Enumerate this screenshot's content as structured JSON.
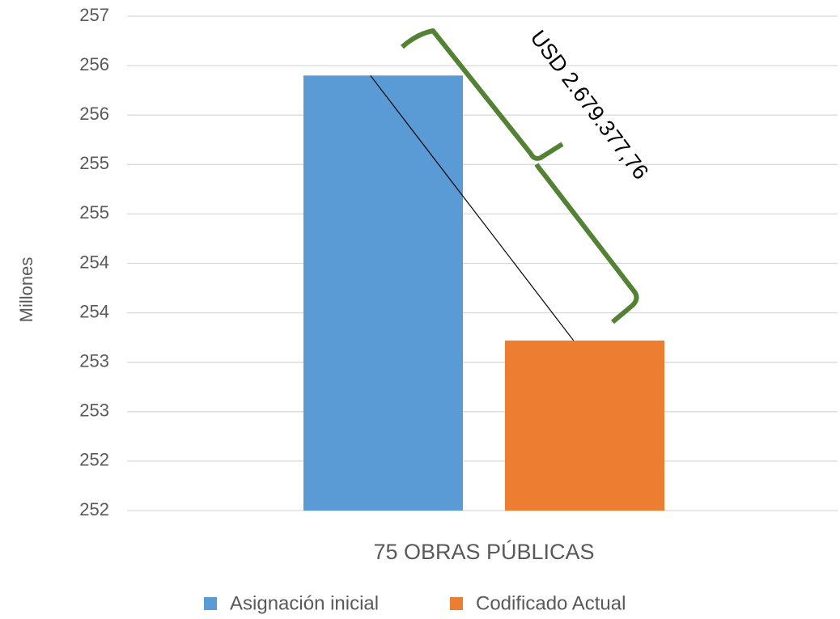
{
  "chart_data": {
    "type": "bar",
    "y_label": "Millones",
    "annotation": "USD 2.679.377,76",
    "categories": [
      "75 OBRAS PÚBLICAS"
    ],
    "series": [
      {
        "name": "Asignación inicial",
        "color": "#5b9bd5",
        "values": [
          255.9
        ]
      },
      {
        "name": "Codificado Actual",
        "color": "#ed7d31",
        "values": [
          253.22
        ]
      }
    ],
    "ylim": [
      251.5,
      256.5
    ],
    "yticks": [
      {
        "value": 251.5,
        "label": "252"
      },
      {
        "value": 252,
        "label": "252"
      },
      {
        "value": 252.5,
        "label": "253"
      },
      {
        "value": 253,
        "label": "253"
      },
      {
        "value": 253.5,
        "label": "254"
      },
      {
        "value": 254,
        "label": "254"
      },
      {
        "value": 254.5,
        "label": "255"
      },
      {
        "value": 255,
        "label": "255"
      },
      {
        "value": 255.5,
        "label": "256"
      },
      {
        "value": 256,
        "label": "256"
      },
      {
        "value": 256.5,
        "label": "257"
      }
    ],
    "grid": true,
    "legend": "bottom"
  }
}
